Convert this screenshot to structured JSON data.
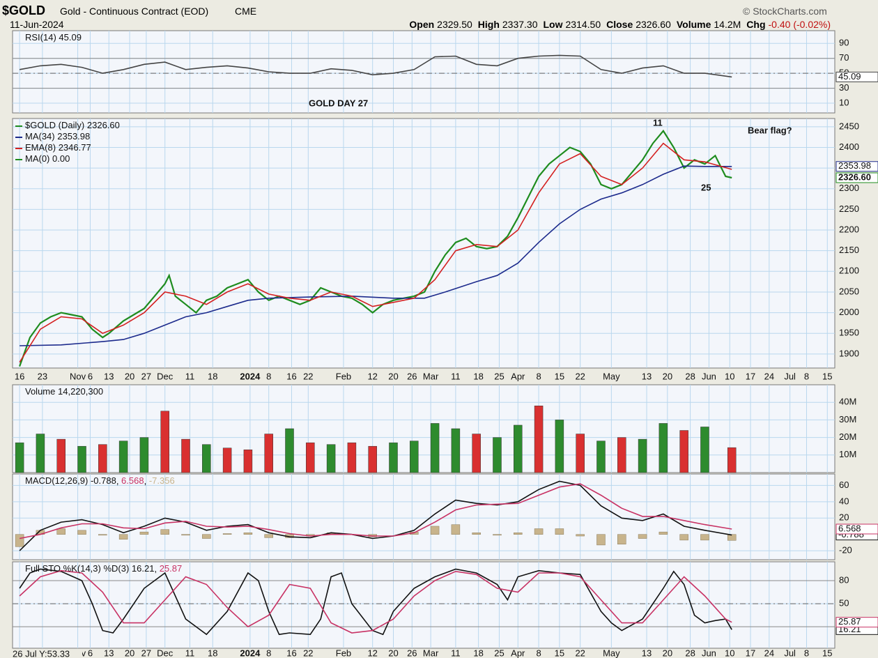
{
  "header": {
    "symbol": "$GOLD",
    "description": "Gold - Continuous Contract (EOD)",
    "exchange": "CME",
    "date": "11-Jun-2024",
    "source": "© StockCharts.com",
    "quote": [
      [
        "Open",
        "2329.50"
      ],
      [
        "High",
        "2337.30"
      ],
      [
        "Low",
        "2314.50"
      ],
      [
        "Close",
        "2326.60"
      ],
      [
        "Volume",
        "14.2M"
      ],
      [
        "Chg",
        "-0.40 (-0.02%)"
      ]
    ],
    "cursor": "26 Jul Y:53.33"
  },
  "annotations": [
    {
      "text": "GOLD DAY 27",
      "color": "#f0a030"
    },
    {
      "text": "Bear flag?",
      "color": "#4a8ac8"
    },
    {
      "text": "11",
      "color": "#e030e0"
    },
    {
      "text": "25",
      "color": "#e030e0"
    }
  ],
  "chart_data": [
    {
      "type": "line",
      "title": "RSI(14)",
      "ylim": [
        -3,
        107
      ],
      "yticks": [
        10,
        30,
        {
          "value": 50,
          "label": "50"
        },
        70,
        90
      ],
      "levels": [
        30,
        50,
        70
      ],
      "dashed_levels": [
        50
      ],
      "grid": true,
      "x": [
        0,
        1,
        2,
        3,
        4,
        5,
        6,
        7,
        8,
        9,
        10,
        11,
        12,
        13,
        14,
        15,
        16,
        17,
        18,
        19,
        20,
        21,
        22,
        23,
        24,
        25,
        26,
        27,
        28,
        29,
        30,
        31,
        32,
        33,
        34.3
      ],
      "series": [
        {
          "name": "RSI",
          "color": "#444444",
          "values": [
            55,
            60,
            62,
            58,
            50,
            55,
            62,
            65,
            55,
            58,
            60,
            57,
            52,
            50,
            50,
            56,
            54,
            48,
            50,
            55,
            72,
            73,
            62,
            60,
            70,
            73,
            74,
            73,
            55,
            50,
            57,
            60,
            50,
            50,
            45.09
          ],
          "tag": 45.09,
          "right_tag": true
        }
      ]
    },
    {
      "type": "line",
      "ylim": [
        1866,
        2470
      ],
      "yticks": [
        1900,
        1950,
        2000,
        2050,
        2100,
        2150,
        2200,
        2250,
        2300,
        2350,
        2400,
        2450
      ],
      "grid": true,
      "xlim": [
        -0.34,
        39.26
      ],
      "xticks": [
        {
          "value": 0,
          "label": "16"
        },
        {
          "value": 1.1,
          "label": "23"
        },
        {
          "value": 2.8,
          "label": "Nov"
        },
        {
          "value": 3.4,
          "label": "6"
        },
        {
          "value": 4.3,
          "label": "13"
        },
        {
          "value": 5.3,
          "label": "20"
        },
        {
          "value": 6.1,
          "label": "27"
        },
        {
          "value": 7.0,
          "label": "Dec"
        },
        {
          "value": 8.2,
          "label": "11"
        },
        {
          "value": 9.3,
          "label": "18"
        },
        {
          "value": 11.1,
          "label": "2024"
        },
        {
          "value": 12.0,
          "label": "8"
        },
        {
          "value": 13.1,
          "label": "16"
        },
        {
          "value": 13.9,
          "label": "22"
        },
        {
          "value": 15.6,
          "label": "Feb"
        },
        {
          "value": 17.0,
          "label": "12"
        },
        {
          "value": 18.0,
          "label": "20"
        },
        {
          "value": 18.9,
          "label": "26"
        },
        {
          "value": 19.8,
          "label": "Mar"
        },
        {
          "value": 21.0,
          "label": "11"
        },
        {
          "value": 22.1,
          "label": "18"
        },
        {
          "value": 23.1,
          "label": "25"
        },
        {
          "value": 24.0,
          "label": "Apr"
        },
        {
          "value": 25.0,
          "label": "8"
        },
        {
          "value": 26.0,
          "label": "15"
        },
        {
          "value": 27.0,
          "label": "22"
        },
        {
          "value": 28.5,
          "label": "May"
        },
        {
          "value": 30.2,
          "label": "13"
        },
        {
          "value": 31.2,
          "label": "20"
        },
        {
          "value": 32.3,
          "label": "28"
        },
        {
          "value": 33.2,
          "label": "Jun"
        },
        {
          "value": 34.2,
          "label": "10"
        },
        {
          "value": 35.2,
          "label": "17"
        },
        {
          "value": 36.1,
          "label": "24"
        },
        {
          "value": 37.1,
          "label": "Jul"
        },
        {
          "value": 37.9,
          "label": "8"
        },
        {
          "value": 38.9,
          "label": "15"
        }
      ],
      "series": [
        {
          "name": "$GOLD (Daily)",
          "color": "#1e8c1e",
          "tag": {
            "value": 2326.6,
            "label": "2326.60"
          },
          "right_tag": true,
          "x": [
            0,
            0.5,
            1,
            1.5,
            2,
            2.5,
            3,
            3.5,
            4,
            4.3,
            5,
            5.5,
            6,
            6.5,
            7,
            7.2,
            7.5,
            8,
            8.5,
            9,
            9.5,
            10,
            10.5,
            11,
            11.5,
            12,
            12.5,
            13,
            13.5,
            14,
            14.5,
            15,
            15.5,
            16,
            16.5,
            17,
            17.5,
            18,
            18.5,
            19,
            19.5,
            20,
            20.5,
            21,
            21.5,
            22,
            22.5,
            23,
            23.5,
            24,
            24.5,
            25,
            25.5,
            26,
            26.5,
            27,
            27.5,
            28,
            28.5,
            29,
            29.5,
            30,
            30.5,
            31,
            31.5,
            32,
            32.5,
            33,
            33.5,
            34,
            34.3
          ],
          "values": [
            1870,
            1940,
            1975,
            1990,
            2000,
            1995,
            1990,
            1960,
            1940,
            1950,
            1980,
            1995,
            2010,
            2040,
            2070,
            2090,
            2040,
            2020,
            2000,
            2030,
            2040,
            2060,
            2070,
            2080,
            2050,
            2030,
            2040,
            2030,
            2020,
            2030,
            2060,
            2050,
            2040,
            2035,
            2020,
            2000,
            2020,
            2030,
            2035,
            2040,
            2050,
            2100,
            2140,
            2170,
            2180,
            2160,
            2155,
            2160,
            2185,
            2230,
            2280,
            2330,
            2360,
            2380,
            2400,
            2390,
            2360,
            2310,
            2300,
            2310,
            2340,
            2370,
            2410,
            2440,
            2400,
            2350,
            2370,
            2360,
            2380,
            2330,
            2326.6
          ]
        },
        {
          "name": "MA(34)",
          "color": "#1c2a8c",
          "tag": 2353.98,
          "right_tag": true,
          "x": [
            0,
            2,
            4,
            5,
            6,
            7,
            8,
            9,
            10,
            11,
            12,
            14,
            16,
            18,
            19.5,
            20.5,
            22,
            23,
            24,
            25,
            26,
            27,
            28,
            29,
            30,
            31,
            32,
            33,
            34.3
          ],
          "values": [
            1920,
            1922,
            1930,
            1935,
            1950,
            1970,
            1990,
            2000,
            2015,
            2030,
            2035,
            2038,
            2040,
            2035,
            2035,
            2050,
            2075,
            2090,
            2120,
            2170,
            2215,
            2250,
            2275,
            2290,
            2310,
            2335,
            2355,
            2354,
            2353.98
          ]
        },
        {
          "name": "EMA(8)",
          "color": "#d42020",
          "tag": 2346.77,
          "x": [
            0,
            1,
            2,
            3,
            4,
            5,
            6,
            7,
            8,
            9,
            10,
            11,
            12,
            13,
            14,
            15,
            16,
            17,
            18,
            19,
            20,
            21,
            22,
            23,
            24,
            25,
            26,
            27,
            28,
            29,
            30,
            31,
            32,
            33,
            34.3
          ],
          "values": [
            1880,
            1960,
            1990,
            1985,
            1950,
            1970,
            2000,
            2050,
            2040,
            2020,
            2050,
            2070,
            2045,
            2035,
            2030,
            2050,
            2040,
            2015,
            2025,
            2035,
            2080,
            2150,
            2165,
            2160,
            2200,
            2290,
            2360,
            2385,
            2330,
            2310,
            2350,
            2410,
            2370,
            2365,
            2346.77
          ]
        },
        {
          "name": "MA(0)",
          "color": "#1e8c1e",
          "tag": {
            "value": 0,
            "label": "0.00"
          }
        }
      ]
    },
    {
      "type": "bar",
      "title": "Volume",
      "tag": {
        "value": 14220300,
        "label": "14,220,300"
      },
      "ylim": [
        0,
        50000000
      ],
      "yticks": [
        {
          "value": 10000000,
          "label": "10M"
        },
        {
          "value": 20000000,
          "label": "20M"
        },
        {
          "value": 30000000,
          "label": "30M"
        },
        {
          "value": 40000000,
          "label": "40M"
        }
      ],
      "grid": true,
      "up_color": "#2e8b2e",
      "down_color": "#d93030",
      "x": [
        0,
        1,
        2,
        3,
        4,
        5,
        6,
        7,
        8,
        9,
        10,
        11,
        12,
        13,
        14,
        15,
        16,
        17,
        18,
        19,
        20,
        21,
        22,
        23,
        24,
        25,
        26,
        27,
        28,
        29,
        30,
        31,
        32,
        33,
        34.3
      ],
      "values": [
        17000000,
        22000000,
        19000000,
        15000000,
        16000000,
        18000000,
        20000000,
        35000000,
        19000000,
        16000000,
        14000000,
        13000000,
        22000000,
        25000000,
        17000000,
        16000000,
        17000000,
        15000000,
        17000000,
        18000000,
        28000000,
        25000000,
        22000000,
        20000000,
        27000000,
        38000000,
        30000000,
        22000000,
        18000000,
        20000000,
        19000000,
        28000000,
        24000000,
        26000000,
        14220300
      ],
      "up": [
        true,
        true,
        false,
        true,
        false,
        true,
        true,
        false,
        false,
        true,
        false,
        false,
        false,
        true,
        false,
        true,
        false,
        false,
        true,
        true,
        true,
        true,
        false,
        true,
        true,
        false,
        true,
        false,
        true,
        false,
        true,
        true,
        false,
        true,
        false
      ]
    },
    {
      "type": "line",
      "title": "MACD(12,26,9)",
      "ylim": [
        -31,
        74
      ],
      "yticks": [
        -20,
        20,
        40,
        60
      ],
      "grid": true,
      "x": [
        0,
        1,
        2,
        3,
        4,
        5,
        6,
        7,
        8,
        9,
        10,
        11,
        12,
        13,
        14,
        15,
        16,
        17,
        18,
        19,
        20,
        21,
        22,
        23,
        24,
        25,
        26,
        27,
        28,
        29,
        30,
        31,
        32,
        33,
        34.3
      ],
      "series": [
        {
          "name": "Histogram",
          "style": "bar",
          "color": "#c8b48c",
          "tag": -7.356,
          "values": [
            -15,
            5,
            7,
            5,
            -1,
            -6,
            3,
            6,
            -1,
            -5,
            1,
            2,
            -4,
            -4,
            -2,
            2,
            0,
            -3,
            0,
            3,
            10,
            12,
            2,
            -1,
            2,
            7,
            7,
            -2,
            -13,
            -12,
            -5,
            3,
            -7,
            -7,
            -7.356
          ]
        },
        {
          "name": "MACD",
          "color": "#111111",
          "tag": -0.788,
          "right_tag": true,
          "values": [
            -20,
            5,
            15,
            18,
            12,
            2,
            10,
            20,
            15,
            5,
            10,
            12,
            2,
            -3,
            -4,
            2,
            0,
            -5,
            -2,
            5,
            25,
            42,
            38,
            36,
            40,
            55,
            65,
            60,
            35,
            20,
            17,
            25,
            10,
            5,
            -0.788
          ]
        },
        {
          "name": "Signal",
          "color": "#c83264",
          "tag": 6.568,
          "right_tag": true,
          "values": [
            -5,
            0,
            8,
            13,
            13,
            8,
            7,
            14,
            16,
            10,
            9,
            10,
            6,
            1,
            -2,
            0,
            0,
            -2,
            -2,
            2,
            15,
            30,
            36,
            37,
            38,
            48,
            58,
            62,
            48,
            32,
            22,
            22,
            17,
            12,
            6.568
          ]
        }
      ]
    },
    {
      "type": "line",
      "title": "Full STO %K(14,3) %D(3)",
      "ylim": [
        -8,
        104.5
      ],
      "yticks": [
        50,
        80
      ],
      "levels": [
        20,
        50,
        80
      ],
      "dashed_levels": [
        50
      ],
      "grid": true,
      "series": [
        {
          "name": "%K",
          "color": "#111111",
          "tag": 16.21,
          "right_tag": true,
          "x": [
            0,
            0.5,
            1,
            2,
            3,
            3.5,
            4,
            4.5,
            5,
            6,
            7,
            7.5,
            8,
            9,
            10,
            11,
            11.5,
            12,
            12.5,
            13,
            14,
            14.5,
            15,
            15.5,
            16,
            17,
            17.5,
            18,
            19,
            20,
            21,
            22,
            23,
            23.5,
            24,
            25,
            26,
            27,
            28,
            28.5,
            29,
            30,
            31,
            31.5,
            32,
            32.5,
            33,
            33.5,
            34,
            34.3
          ],
          "values": [
            70,
            90,
            95,
            92,
            80,
            50,
            15,
            12,
            30,
            70,
            90,
            60,
            30,
            10,
            40,
            90,
            80,
            40,
            10,
            12,
            10,
            30,
            85,
            90,
            50,
            15,
            10,
            40,
            70,
            85,
            95,
            90,
            75,
            55,
            85,
            93,
            90,
            88,
            40,
            25,
            15,
            30,
            70,
            92,
            75,
            35,
            25,
            28,
            30,
            16.21
          ]
        },
        {
          "name": "%D",
          "color": "#c83264",
          "tag": 25.87,
          "right_tag": true,
          "x": [
            0,
            1,
            2,
            3,
            4,
            5,
            6,
            7,
            8,
            9,
            10,
            11,
            12,
            13,
            14,
            15,
            16,
            17,
            18,
            19,
            20,
            21,
            22,
            23,
            24,
            25,
            26,
            27,
            28,
            29,
            30,
            31,
            32,
            33,
            34,
            34.3
          ],
          "values": [
            60,
            85,
            93,
            90,
            65,
            25,
            25,
            55,
            85,
            75,
            45,
            20,
            35,
            75,
            70,
            25,
            12,
            15,
            30,
            60,
            80,
            92,
            88,
            70,
            65,
            90,
            90,
            85,
            55,
            25,
            25,
            55,
            85,
            60,
            30,
            25.87
          ]
        }
      ]
    }
  ]
}
